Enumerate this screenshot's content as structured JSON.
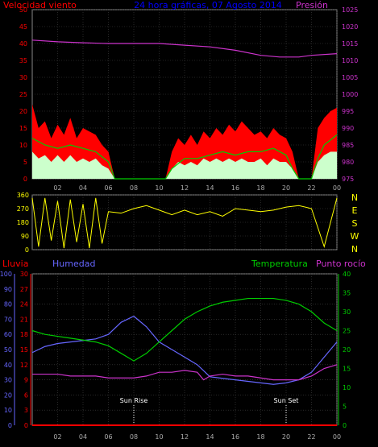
{
  "chart_data": [
    {
      "type": "line",
      "header": {
        "left": "Velocidad viento",
        "center": "24 hora gráficas, 07 Agosto 2014",
        "right": "Presión"
      },
      "x_ticks": [
        "02",
        "04",
        "06",
        "08",
        "10",
        "12",
        "14",
        "16",
        "18",
        "20",
        "22",
        "00"
      ],
      "y_left_ticks": [
        "0",
        "5",
        "10",
        "15",
        "20",
        "25",
        "30",
        "35",
        "40",
        "45",
        "50"
      ],
      "y_left_range": [
        0,
        50
      ],
      "y_right_ticks": [
        "975",
        "980",
        "985",
        "990",
        "995",
        "1000",
        "1005",
        "1010",
        "1015",
        "1020",
        "1025"
      ],
      "y_right_range": [
        975,
        1025
      ],
      "colors": {
        "gust": "#ff0000",
        "wind": "#ffffff",
        "avg": "#00cc00",
        "pressure": "#cc33cc"
      },
      "pressure": {
        "x": [
          0,
          2,
          4,
          6,
          8,
          10,
          12,
          14,
          16,
          18,
          19.5,
          21,
          22,
          24
        ],
        "y": [
          1016,
          1015.5,
          1015.2,
          1015,
          1015,
          1015,
          1014.5,
          1014,
          1013,
          1011.5,
          1011,
          1011,
          1011.5,
          1012
        ]
      },
      "gust": {
        "x": [
          0,
          0.5,
          1,
          1.5,
          2,
          2.5,
          3,
          3.5,
          4,
          4.5,
          5,
          5.5,
          6,
          6.5,
          10.5,
          11,
          11.5,
          12,
          12.5,
          13,
          13.5,
          14,
          14.5,
          15,
          15.5,
          16,
          16.5,
          17,
          17.5,
          18,
          18.5,
          19,
          19.5,
          20,
          20.5,
          21,
          22,
          22.5,
          23,
          23.5,
          24
        ],
        "y": [
          22,
          15,
          17,
          12,
          16,
          13,
          18,
          12,
          15,
          14,
          13,
          10,
          8,
          0,
          0,
          8,
          12,
          10,
          13,
          10,
          14,
          12,
          15,
          13,
          16,
          14,
          17,
          15,
          13,
          14,
          12,
          15,
          13,
          12,
          8,
          0,
          0,
          15,
          18,
          20,
          21
        ]
      },
      "wind": {
        "x": [
          0,
          0.5,
          1,
          1.5,
          2,
          2.5,
          3,
          3.5,
          4,
          4.5,
          5,
          5.5,
          6,
          6.5,
          10.5,
          11,
          11.5,
          12,
          12.5,
          13,
          13.5,
          14,
          14.5,
          15,
          15.5,
          16,
          16.5,
          17,
          17.5,
          18,
          18.5,
          19,
          19.5,
          20,
          20.5,
          21,
          22,
          22.5,
          23,
          23.5,
          24
        ],
        "y": [
          8,
          6,
          7,
          5,
          7,
          5,
          7,
          5,
          6,
          5,
          6,
          4,
          3,
          0,
          0,
          3,
          5,
          4,
          5,
          4,
          6,
          5,
          6,
          5,
          6,
          5,
          6,
          5,
          5,
          6,
          4,
          6,
          5,
          5,
          3,
          0,
          0,
          5,
          7,
          8,
          8
        ]
      },
      "avg": {
        "x": [
          0,
          1,
          2,
          3,
          4,
          5,
          6,
          6.5,
          10.5,
          11,
          12,
          13,
          14,
          15,
          16,
          17,
          18,
          19,
          20,
          20.5,
          21,
          22,
          22.5,
          23,
          24
        ],
        "y": [
          12,
          10,
          9,
          10,
          9,
          8,
          5,
          0,
          0,
          3,
          6,
          6,
          7,
          8,
          7,
          8,
          8,
          9,
          7,
          3,
          0,
          0,
          6,
          10,
          13
        ]
      }
    },
    {
      "type": "line",
      "y_ticks": [
        "0",
        "90",
        "180",
        "270",
        "360"
      ],
      "y_range": [
        0,
        360
      ],
      "compass": [
        "N",
        "W",
        "S",
        "E",
        "N"
      ],
      "color": "#ffff00",
      "direction": {
        "x": [
          0,
          0.5,
          1,
          1.5,
          2,
          2.5,
          3,
          3.5,
          4,
          4.5,
          5,
          5.5,
          6,
          7,
          8,
          9,
          10,
          11,
          12,
          13,
          14,
          15,
          16,
          17,
          18,
          19,
          20,
          21,
          22,
          23,
          24
        ],
        "y": [
          340,
          20,
          340,
          60,
          320,
          10,
          330,
          50,
          300,
          10,
          340,
          40,
          250,
          240,
          270,
          290,
          260,
          230,
          260,
          230,
          250,
          220,
          270,
          260,
          250,
          260,
          280,
          290,
          270,
          20,
          340
        ]
      }
    },
    {
      "type": "line",
      "labels": {
        "rain": "Lluvia",
        "humidity": "Humedad",
        "temperature": "Temperatura",
        "dewpoint": "Punto rocío"
      },
      "annotations": [
        {
          "x": 8,
          "text": "Sun Rise"
        },
        {
          "x": 20,
          "text": "Sun Set"
        }
      ],
      "x_ticks": [
        "02",
        "04",
        "06",
        "08",
        "10",
        "12",
        "14",
        "16",
        "18",
        "20",
        "22",
        "00"
      ],
      "humidity_ticks": [
        "0",
        "10",
        "20",
        "30",
        "40",
        "50",
        "60",
        "70",
        "80",
        "90",
        "100"
      ],
      "rain_ticks": [
        "0",
        "3",
        "6",
        "9",
        "12",
        "15",
        "18",
        "21",
        "24",
        "27",
        "30"
      ],
      "temperature_ticks": [
        "0",
        "5",
        "10",
        "15",
        "20",
        "25",
        "30",
        "35",
        "40"
      ],
      "humidity_range": [
        0,
        100
      ],
      "temperature_range": [
        0,
        40
      ],
      "colors": {
        "rain": "#ff0000",
        "humidity": "#6666ff",
        "temperature": "#00cc00",
        "dewpoint": "#cc00cc"
      },
      "temperature": {
        "x": [
          0,
          1,
          2,
          3,
          4,
          5,
          6,
          7,
          8,
          9,
          10,
          11,
          12,
          13,
          14,
          15,
          16,
          17,
          18,
          19,
          20,
          21,
          22,
          23,
          24
        ],
        "y": [
          25,
          24,
          23.5,
          23,
          22.5,
          22,
          21,
          19,
          17,
          19,
          22,
          25,
          28,
          30,
          31.5,
          32.5,
          33,
          33.5,
          33.5,
          33.5,
          33,
          32,
          30,
          27,
          25
        ]
      },
      "humidity": {
        "x": [
          0,
          1,
          2,
          3,
          4,
          5,
          6,
          7,
          8,
          9,
          10,
          11,
          12,
          13,
          14,
          15,
          16,
          17,
          18,
          19,
          20,
          21,
          22,
          23,
          24
        ],
        "y": [
          48,
          52,
          54,
          55,
          56,
          57,
          60,
          68,
          72,
          65,
          55,
          50,
          45,
          40,
          32,
          31,
          30,
          29,
          28,
          27,
          28,
          30,
          35,
          45,
          55
        ]
      },
      "dewpoint": {
        "x": [
          0,
          1,
          2,
          3,
          4,
          5,
          6,
          7,
          8,
          9,
          10,
          11,
          12,
          13,
          13.5,
          14,
          15,
          16,
          17,
          18,
          19,
          20,
          21,
          22,
          23,
          24
        ],
        "y": [
          13.5,
          13.5,
          13.5,
          13,
          13,
          13,
          12.5,
          12.5,
          12.5,
          13,
          14,
          14,
          14.5,
          14,
          12,
          13,
          13.5,
          13,
          13,
          12.5,
          12,
          12,
          12,
          13,
          15,
          16
        ]
      },
      "rain": {
        "x": [
          0,
          24
        ],
        "y": [
          0,
          0
        ]
      }
    }
  ]
}
